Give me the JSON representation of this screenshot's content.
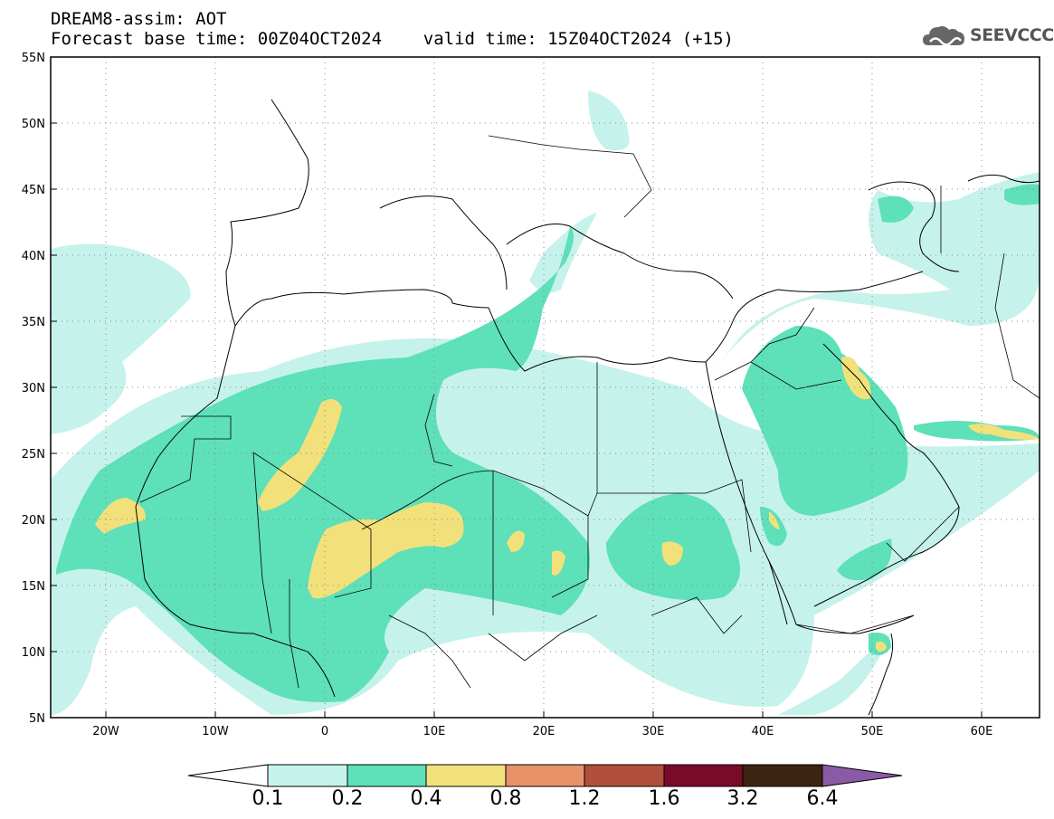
{
  "title": {
    "line1": "DREAM8-assim: AOT",
    "line2": "Forecast base time: 00Z04OCT2024    valid time: 15Z04OCT2024 (+15)"
  },
  "logo": {
    "text": "SEEVCCC",
    "icon": "cloud-icon"
  },
  "map": {
    "lat_ticks": [
      "55N",
      "50N",
      "45N",
      "40N",
      "35N",
      "30N",
      "25N",
      "20N",
      "15N",
      "10N",
      "5N"
    ],
    "lon_ticks": [
      "20W",
      "10W",
      "0",
      "10E",
      "20E",
      "30E",
      "40E",
      "50E",
      "60E"
    ],
    "lat_range": [
      5,
      55
    ],
    "lon_range": [
      -25,
      65
    ],
    "grid": "dotted"
  },
  "colorbar": {
    "labels": [
      "0.1",
      "0.2",
      "0.4",
      "0.8",
      "1.2",
      "1.6",
      "3.2",
      "6.4"
    ],
    "colors": [
      "#ffffff",
      "#c6f2ec",
      "#5ee0b8",
      "#f2e17a",
      "#e8926a",
      "#b0503c",
      "#7a0a2a",
      "#3c2410",
      "#8a5aa6"
    ]
  }
}
